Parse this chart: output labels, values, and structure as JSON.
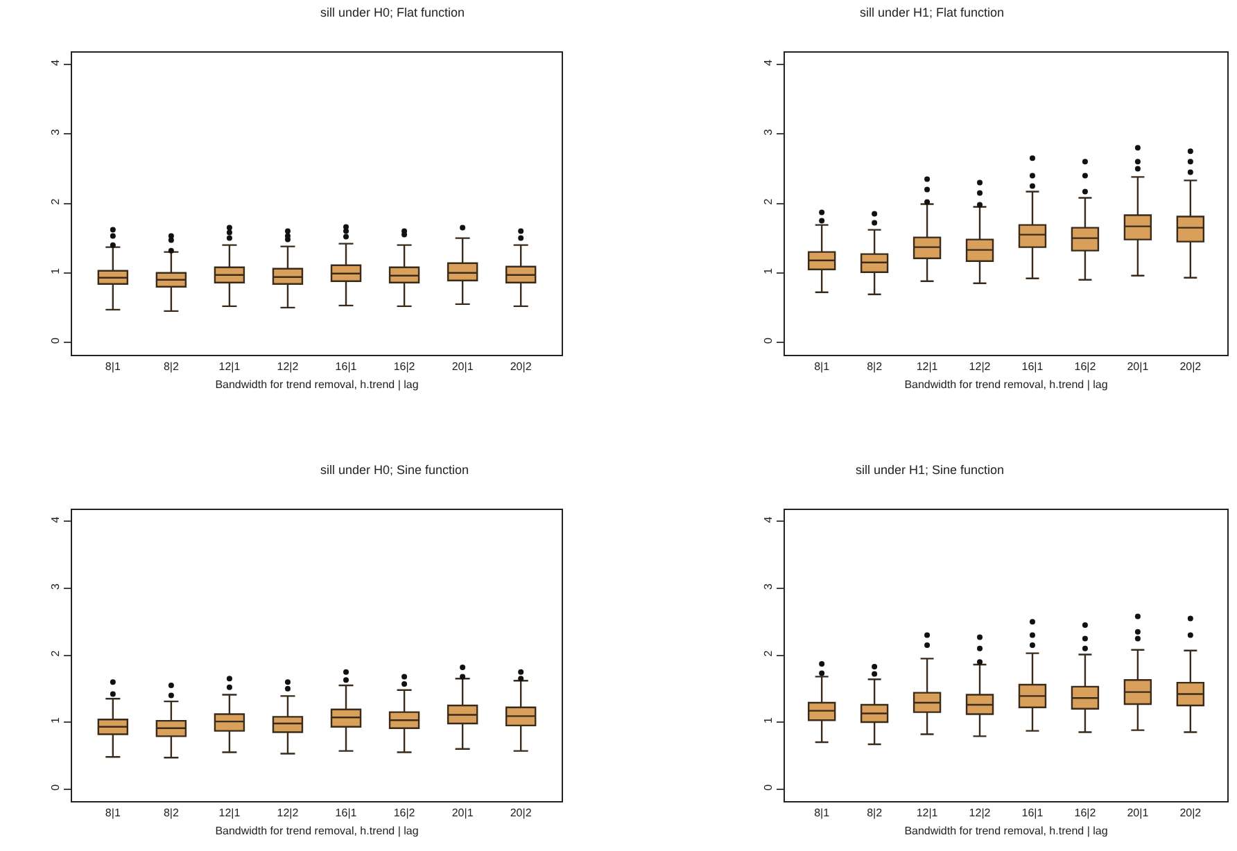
{
  "chart_data": [
    {
      "type": "box",
      "title": "sill under H0; Flat function",
      "xlabel": "Bandwidth for trend removal, h.trend | lag",
      "categories": [
        "8|1",
        "8|2",
        "12|1",
        "12|2",
        "16|1",
        "16|2",
        "20|1",
        "20|2"
      ],
      "color": "#d9a05b",
      "ylim": [
        -0.18,
        4.17
      ],
      "yticks": [
        0,
        1,
        2,
        3,
        4
      ],
      "boxes": [
        {
          "low": 0.47,
          "q1": 0.84,
          "median": 0.93,
          "q3": 1.03,
          "high": 1.37,
          "outliers": [
            1.4,
            1.53,
            1.62
          ]
        },
        {
          "low": 0.45,
          "q1": 0.8,
          "median": 0.9,
          "q3": 1.0,
          "high": 1.3,
          "outliers": [
            1.32,
            1.47,
            1.53
          ]
        },
        {
          "low": 0.52,
          "q1": 0.86,
          "median": 0.97,
          "q3": 1.08,
          "high": 1.4,
          "outliers": [
            1.5,
            1.58,
            1.65
          ]
        },
        {
          "low": 0.5,
          "q1": 0.84,
          "median": 0.94,
          "q3": 1.06,
          "high": 1.38,
          "outliers": [
            1.48,
            1.53,
            1.6
          ]
        },
        {
          "low": 0.53,
          "q1": 0.88,
          "median": 0.99,
          "q3": 1.11,
          "high": 1.42,
          "outliers": [
            1.52,
            1.6,
            1.66
          ]
        },
        {
          "low": 0.52,
          "q1": 0.86,
          "median": 0.96,
          "q3": 1.08,
          "high": 1.4,
          "outliers": [
            1.55,
            1.6
          ]
        },
        {
          "low": 0.55,
          "q1": 0.89,
          "median": 1.0,
          "q3": 1.14,
          "high": 1.5,
          "outliers": [
            1.65
          ]
        },
        {
          "low": 0.52,
          "q1": 0.86,
          "median": 0.97,
          "q3": 1.09,
          "high": 1.4,
          "outliers": [
            1.5,
            1.6
          ]
        }
      ]
    },
    {
      "type": "box",
      "title": "sill under H1; Flat function",
      "xlabel": "Bandwidth for trend removal, h.trend | lag",
      "categories": [
        "8|1",
        "8|2",
        "12|1",
        "12|2",
        "16|1",
        "16|2",
        "20|1",
        "20|2"
      ],
      "color": "#d9a05b",
      "ylim": [
        -0.18,
        4.17
      ],
      "yticks": [
        0,
        1,
        2,
        3,
        4
      ],
      "boxes": [
        {
          "low": 0.72,
          "q1": 1.05,
          "median": 1.18,
          "q3": 1.3,
          "high": 1.69,
          "outliers": [
            1.75,
            1.87
          ]
        },
        {
          "low": 0.69,
          "q1": 1.01,
          "median": 1.15,
          "q3": 1.27,
          "high": 1.62,
          "outliers": [
            1.72,
            1.85
          ]
        },
        {
          "low": 0.88,
          "q1": 1.21,
          "median": 1.37,
          "q3": 1.51,
          "high": 1.99,
          "outliers": [
            2.02,
            2.2,
            2.35
          ]
        },
        {
          "low": 0.85,
          "q1": 1.17,
          "median": 1.33,
          "q3": 1.48,
          "high": 1.95,
          "outliers": [
            1.98,
            2.15,
            2.3
          ]
        },
        {
          "low": 0.92,
          "q1": 1.37,
          "median": 1.55,
          "q3": 1.69,
          "high": 2.17,
          "outliers": [
            2.25,
            2.4,
            2.65
          ]
        },
        {
          "low": 0.9,
          "q1": 1.32,
          "median": 1.5,
          "q3": 1.65,
          "high": 2.08,
          "outliers": [
            2.17,
            2.4,
            2.6
          ]
        },
        {
          "low": 0.96,
          "q1": 1.48,
          "median": 1.67,
          "q3": 1.83,
          "high": 2.38,
          "outliers": [
            2.5,
            2.6,
            2.8
          ]
        },
        {
          "low": 0.93,
          "q1": 1.45,
          "median": 1.65,
          "q3": 1.81,
          "high": 2.33,
          "outliers": [
            2.45,
            2.6,
            2.75
          ]
        }
      ]
    },
    {
      "type": "box",
      "title": "sill under H0; Sine function",
      "xlabel": "Bandwidth for trend removal, h.trend | lag",
      "categories": [
        "8|1",
        "8|2",
        "12|1",
        "12|2",
        "16|1",
        "16|2",
        "20|1",
        "20|2"
      ],
      "color": "#d9a05b",
      "ylim": [
        -0.18,
        4.17
      ],
      "yticks": [
        0,
        1,
        2,
        3,
        4
      ],
      "boxes": [
        {
          "low": 0.48,
          "q1": 0.82,
          "median": 0.93,
          "q3": 1.04,
          "high": 1.35,
          "outliers": [
            1.42,
            1.6
          ]
        },
        {
          "low": 0.47,
          "q1": 0.79,
          "median": 0.91,
          "q3": 1.02,
          "high": 1.31,
          "outliers": [
            1.4,
            1.55
          ]
        },
        {
          "low": 0.55,
          "q1": 0.87,
          "median": 1.01,
          "q3": 1.12,
          "high": 1.41,
          "outliers": [
            1.52,
            1.65
          ]
        },
        {
          "low": 0.53,
          "q1": 0.85,
          "median": 0.98,
          "q3": 1.08,
          "high": 1.39,
          "outliers": [
            1.5,
            1.6
          ]
        },
        {
          "low": 0.57,
          "q1": 0.93,
          "median": 1.07,
          "q3": 1.19,
          "high": 1.55,
          "outliers": [
            1.63,
            1.75
          ]
        },
        {
          "low": 0.55,
          "q1": 0.91,
          "median": 1.03,
          "q3": 1.15,
          "high": 1.48,
          "outliers": [
            1.57,
            1.68
          ]
        },
        {
          "low": 0.6,
          "q1": 0.98,
          "median": 1.11,
          "q3": 1.25,
          "high": 1.65,
          "outliers": [
            1.68,
            1.82
          ]
        },
        {
          "low": 0.57,
          "q1": 0.95,
          "median": 1.09,
          "q3": 1.22,
          "high": 1.62,
          "outliers": [
            1.65,
            1.75
          ]
        }
      ]
    },
    {
      "type": "box",
      "title": "sill under H1; Sine function",
      "xlabel": "Bandwidth for trend removal, h.trend | lag",
      "categories": [
        "8|1",
        "8|2",
        "12|1",
        "12|2",
        "16|1",
        "16|2",
        "20|1",
        "20|2"
      ],
      "color": "#d9a05b",
      "ylim": [
        -0.18,
        4.17
      ],
      "yticks": [
        0,
        1,
        2,
        3,
        4
      ],
      "boxes": [
        {
          "low": 0.7,
          "q1": 1.03,
          "median": 1.17,
          "q3": 1.29,
          "high": 1.68,
          "outliers": [
            1.73,
            1.87
          ]
        },
        {
          "low": 0.67,
          "q1": 1.0,
          "median": 1.13,
          "q3": 1.26,
          "high": 1.64,
          "outliers": [
            1.72,
            1.83
          ]
        },
        {
          "low": 0.82,
          "q1": 1.15,
          "median": 1.29,
          "q3": 1.44,
          "high": 1.95,
          "outliers": [
            2.15,
            2.3
          ]
        },
        {
          "low": 0.79,
          "q1": 1.12,
          "median": 1.26,
          "q3": 1.41,
          "high": 1.86,
          "outliers": [
            1.9,
            2.1,
            2.27
          ]
        },
        {
          "low": 0.87,
          "q1": 1.22,
          "median": 1.39,
          "q3": 1.56,
          "high": 2.03,
          "outliers": [
            2.15,
            2.3,
            2.5
          ]
        },
        {
          "low": 0.85,
          "q1": 1.2,
          "median": 1.36,
          "q3": 1.53,
          "high": 2.01,
          "outliers": [
            2.1,
            2.25,
            2.45
          ]
        },
        {
          "low": 0.88,
          "q1": 1.27,
          "median": 1.45,
          "q3": 1.63,
          "high": 2.08,
          "outliers": [
            2.25,
            2.35,
            2.58
          ]
        },
        {
          "low": 0.85,
          "q1": 1.25,
          "median": 1.42,
          "q3": 1.59,
          "high": 2.07,
          "outliers": [
            2.3,
            2.55
          ]
        }
      ]
    }
  ]
}
